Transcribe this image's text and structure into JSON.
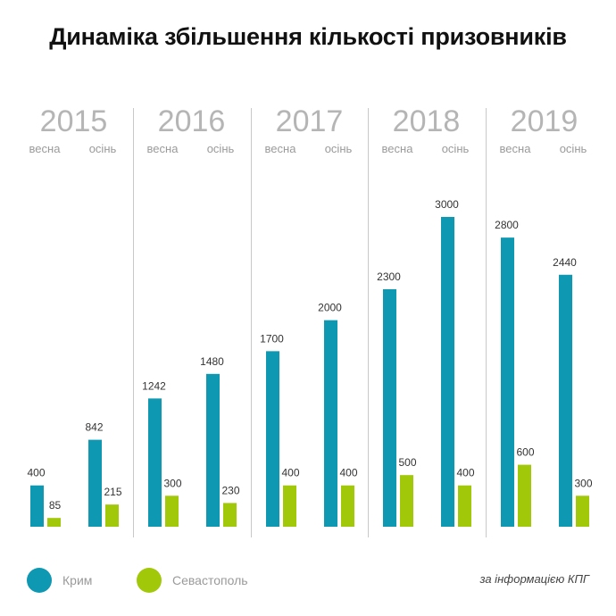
{
  "colors": {
    "crimea": "#0e98b2",
    "sevastopol": "#a2c80a",
    "divider": "#c8c8c8"
  },
  "chart_data": {
    "type": "bar",
    "title": "Динаміка збільшення кількості призовників",
    "groups": [
      {
        "year": "2015",
        "seasons": [
          "весна",
          "осінь"
        ]
      },
      {
        "year": "2016",
        "seasons": [
          "весна",
          "осінь"
        ]
      },
      {
        "year": "2017",
        "seasons": [
          "весна",
          "осінь"
        ]
      },
      {
        "year": "2018",
        "seasons": [
          "весна",
          "осінь"
        ]
      },
      {
        "year": "2019",
        "seasons": [
          "весна",
          "осінь"
        ]
      }
    ],
    "categories": [
      "2015 весна",
      "2015 осінь",
      "2016 весна",
      "2016 осінь",
      "2017 весна",
      "2017 осінь",
      "2018 весна",
      "2018 осінь",
      "2019 весна",
      "2019 осінь"
    ],
    "series": [
      {
        "name": "Крим",
        "values": [
          400,
          842,
          1242,
          1480,
          1700,
          2000,
          2300,
          3000,
          2800,
          2440
        ]
      },
      {
        "name": "Севастополь",
        "values": [
          85,
          215,
          300,
          230,
          400,
          400,
          500,
          400,
          600,
          300
        ]
      }
    ],
    "ylim": [
      0,
      3000
    ],
    "xlabel": "",
    "ylabel": "",
    "grid": false,
    "legend": "bottom-left"
  },
  "legend": [
    {
      "label": "Крим"
    },
    {
      "label": "Севастополь"
    }
  ],
  "source": "за інформацією КПГ"
}
